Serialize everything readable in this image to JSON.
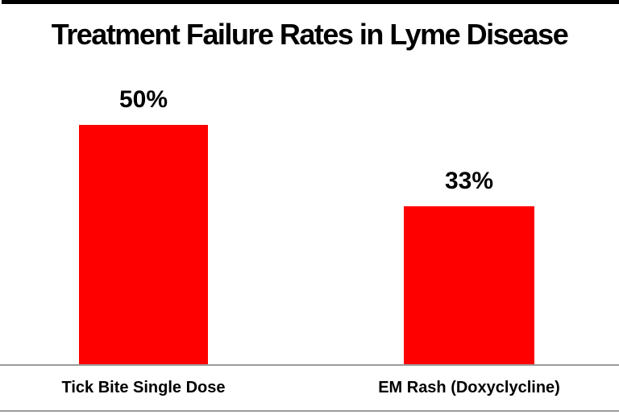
{
  "title": "Treatment Failure Rates in Lyme Disease",
  "chart_data": {
    "type": "bar",
    "title": "Treatment Failure Rates in Lyme Disease",
    "categories": [
      "Tick Bite Single Dose",
      "EM Rash (Doxyclycline)"
    ],
    "values": [
      50,
      33
    ],
    "value_labels": [
      "50%",
      "33%"
    ],
    "xlabel": "",
    "ylabel": "",
    "ylim": [
      0,
      55
    ],
    "y_axis_visible": false,
    "grid": false,
    "legend_position": "none",
    "bar_color": "#ff0000",
    "axis_line_color": "#9c9c9c",
    "top_rule_color": "#000000",
    "text_color": "#000000",
    "background_color": "#ffffff"
  }
}
